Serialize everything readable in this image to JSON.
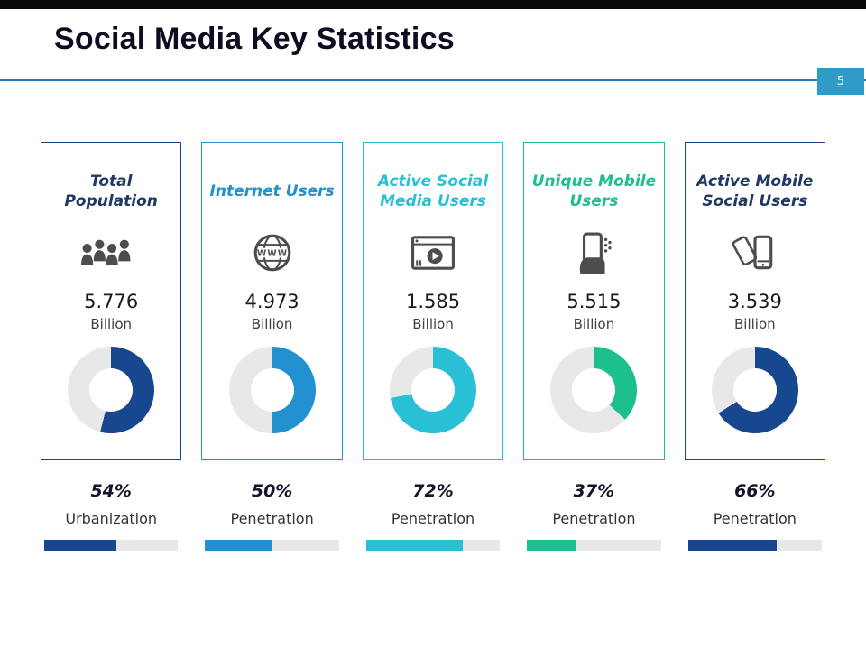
{
  "slide": {
    "title": "Social Media Key Statistics",
    "page_number": "5"
  },
  "colors": {
    "top_bar": "#0a0a0a",
    "divider": "#2e75b6",
    "badge_bg": "#2e9cc6",
    "track": "#e8e8e8",
    "icon_gray": "#4d4d4d"
  },
  "cards": [
    {
      "title": "Total Population",
      "icon": "people-group-icon",
      "value": "5.776",
      "unit": "Billion",
      "percent": 54,
      "percent_label": "54%",
      "metric": "Urbanization",
      "title_color": "#1f3864",
      "accent": "#17478f"
    },
    {
      "title": "Internet Users",
      "icon": "globe-www-icon",
      "value": "4.973",
      "unit": "Billion",
      "percent": 50,
      "percent_label": "50%",
      "metric": "Penetration",
      "title_color": "#2390cf",
      "accent": "#2390cf"
    },
    {
      "title": "Active Social Media Users",
      "icon": "video-player-icon",
      "value": "1.585",
      "unit": "Billion",
      "percent": 72,
      "percent_label": "72%",
      "metric": "Penetration",
      "title_color": "#29c0d6",
      "accent": "#29c0d6"
    },
    {
      "title": "Unique Mobile Users",
      "icon": "hand-holding-phone-icon",
      "value": "5.515",
      "unit": "Billion",
      "percent": 37,
      "percent_label": "37%",
      "metric": "Penetration",
      "title_color": "#1dbf8e",
      "accent": "#1dbf8e"
    },
    {
      "title": "Active Mobile Social Users",
      "icon": "dual-phones-icon",
      "value": "3.539",
      "unit": "Billion",
      "percent": 66,
      "percent_label": "66%",
      "metric": "Penetration",
      "title_color": "#1f3864",
      "accent": "#17478f"
    }
  ],
  "chart_data": {
    "type": "pie",
    "title": "Social Media Key Statistics",
    "subtype": "donut-multiples-with-progress-bars",
    "charts": [
      {
        "type": "donut",
        "label": "Total Population",
        "value": 5.776,
        "value_unit": "Billion",
        "percent": 54,
        "percent_metric": "Urbanization",
        "color": "#17478f",
        "track_color": "#e8e8e8"
      },
      {
        "type": "donut",
        "label": "Internet Users",
        "value": 4.973,
        "value_unit": "Billion",
        "percent": 50,
        "percent_metric": "Penetration",
        "color": "#2390cf",
        "track_color": "#e8e8e8"
      },
      {
        "type": "donut",
        "label": "Active Social Media Users",
        "value": 1.585,
        "value_unit": "Billion",
        "percent": 72,
        "percent_metric": "Penetration",
        "color": "#29c0d6",
        "track_color": "#e8e8e8"
      },
      {
        "type": "donut",
        "label": "Unique Mobile Users",
        "value": 5.515,
        "value_unit": "Billion",
        "percent": 37,
        "percent_metric": "Penetration",
        "color": "#1dbf8e",
        "track_color": "#e8e8e8"
      },
      {
        "type": "donut",
        "label": "Active Mobile Social Users",
        "value": 3.539,
        "value_unit": "Billion",
        "percent": 66,
        "percent_metric": "Penetration",
        "color": "#17478f",
        "track_color": "#e8e8e8"
      }
    ],
    "legend": "none",
    "notes": "Each donut starts at 12 o'clock and fills clockwise by percent; bottom bars repeat the same percent values."
  }
}
